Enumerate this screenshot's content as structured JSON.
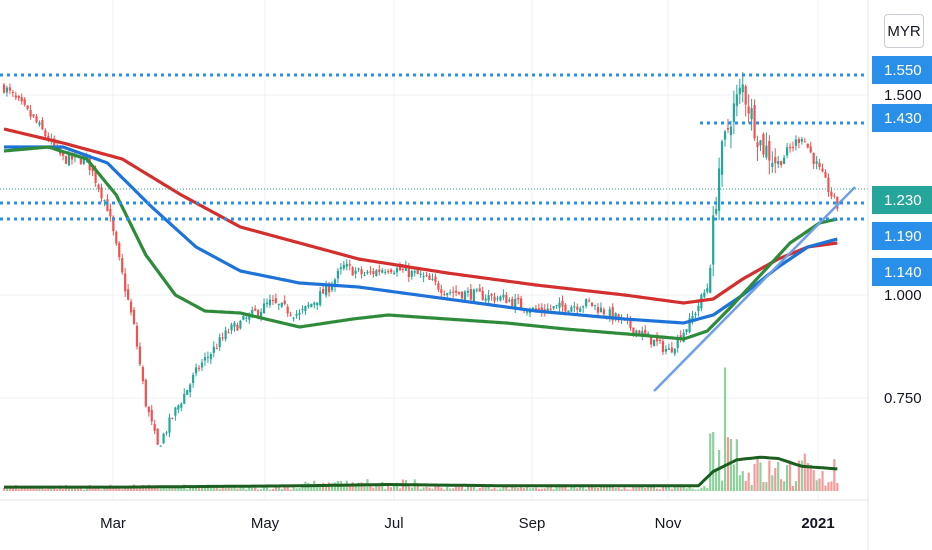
{
  "currency": "MYR",
  "colors": {
    "up": "#26a69a",
    "down": "#ef5350",
    "ma_red": "#d32f2f",
    "ma_blue": "#1e73d8",
    "ma_green": "#2e8b3a",
    "trendline": "#6f9fe6",
    "level": "#2a8fe8",
    "current": "#26a69a",
    "vol_avg": "#1b5e20"
  },
  "chart_data": {
    "type": "candlestick",
    "title": "",
    "x_labels": [
      "Mar",
      "May",
      "Jul",
      "Sep",
      "Nov",
      "2021"
    ],
    "y_ticks": [
      "1.500",
      "1.000",
      "0.750"
    ],
    "ylim": [
      0.55,
      1.62
    ],
    "level_lines": [
      {
        "label": "1.550",
        "value": 1.55
      },
      {
        "label": "1.430",
        "value": 1.43
      },
      {
        "label": "1.190",
        "value": 1.19
      },
      {
        "label": "1.140",
        "value": 1.14
      }
    ],
    "dotted_levels": [
      1.55,
      1.43,
      1.19,
      1.23
    ],
    "current_price": {
      "label": "1.230",
      "value": 1.23
    },
    "price_keypoints": [
      [
        0,
        1.52
      ],
      [
        10,
        1.44
      ],
      [
        20,
        1.34
      ],
      [
        28,
        1.34
      ],
      [
        35,
        1.22
      ],
      [
        40,
        1.05
      ],
      [
        44,
        0.92
      ],
      [
        48,
        0.73
      ],
      [
        52,
        0.62
      ],
      [
        58,
        0.71
      ],
      [
        66,
        0.82
      ],
      [
        76,
        0.91
      ],
      [
        90,
        0.98
      ],
      [
        100,
        0.95
      ],
      [
        110,
        1.02
      ],
      [
        115,
        1.07
      ],
      [
        122,
        1.05
      ],
      [
        130,
        1.07
      ],
      [
        140,
        1.05
      ],
      [
        150,
        1.01
      ],
      [
        170,
        0.99
      ],
      [
        180,
        0.96
      ],
      [
        198,
        0.98
      ],
      [
        210,
        0.93
      ],
      [
        225,
        0.86
      ],
      [
        232,
        0.93
      ],
      [
        238,
        1.02
      ],
      [
        242,
        1.32
      ],
      [
        246,
        1.45
      ],
      [
        250,
        1.52
      ],
      [
        256,
        1.38
      ],
      [
        262,
        1.33
      ],
      [
        270,
        1.4
      ],
      [
        278,
        1.28
      ],
      [
        282,
        1.22
      ]
    ],
    "moving_averages": [
      {
        "color_key": "ma_red",
        "keypoints": [
          [
            0,
            1.415
          ],
          [
            20,
            1.38
          ],
          [
            40,
            1.34
          ],
          [
            60,
            1.25
          ],
          [
            80,
            1.17
          ],
          [
            100,
            1.13
          ],
          [
            120,
            1.09
          ],
          [
            150,
            1.055
          ],
          [
            180,
            1.025
          ],
          [
            210,
            1.0
          ],
          [
            230,
            0.98
          ],
          [
            240,
            0.99
          ],
          [
            250,
            1.04
          ],
          [
            262,
            1.09
          ],
          [
            272,
            1.12
          ],
          [
            282,
            1.13
          ]
        ]
      },
      {
        "color_key": "ma_blue",
        "keypoints": [
          [
            0,
            1.37
          ],
          [
            20,
            1.37
          ],
          [
            35,
            1.33
          ],
          [
            50,
            1.22
          ],
          [
            65,
            1.12
          ],
          [
            80,
            1.06
          ],
          [
            100,
            1.03
          ],
          [
            120,
            1.02
          ],
          [
            150,
            0.99
          ],
          [
            180,
            0.96
          ],
          [
            210,
            0.94
          ],
          [
            230,
            0.93
          ],
          [
            240,
            0.95
          ],
          [
            250,
            1.0
          ],
          [
            262,
            1.07
          ],
          [
            272,
            1.12
          ],
          [
            282,
            1.14
          ]
        ]
      },
      {
        "color_key": "ma_green",
        "keypoints": [
          [
            0,
            1.36
          ],
          [
            15,
            1.37
          ],
          [
            28,
            1.34
          ],
          [
            38,
            1.25
          ],
          [
            48,
            1.1
          ],
          [
            58,
            1.0
          ],
          [
            68,
            0.96
          ],
          [
            80,
            0.955
          ],
          [
            100,
            0.92
          ],
          [
            118,
            0.94
          ],
          [
            130,
            0.95
          ],
          [
            150,
            0.94
          ],
          [
            170,
            0.93
          ],
          [
            190,
            0.915
          ],
          [
            215,
            0.9
          ],
          [
            230,
            0.89
          ],
          [
            238,
            0.91
          ],
          [
            246,
            0.97
          ],
          [
            256,
            1.05
          ],
          [
            266,
            1.13
          ],
          [
            276,
            1.18
          ],
          [
            282,
            1.19
          ]
        ]
      }
    ],
    "trendline": {
      "from": [
        220,
        0.76
      ],
      "to": [
        288,
        1.27
      ]
    },
    "volume_avg_keypoints": [
      [
        0,
        0.03
      ],
      [
        40,
        0.03
      ],
      [
        100,
        0.04
      ],
      [
        130,
        0.05
      ],
      [
        170,
        0.04
      ],
      [
        235,
        0.04
      ],
      [
        240,
        0.15
      ],
      [
        248,
        0.24
      ],
      [
        256,
        0.26
      ],
      [
        262,
        0.25
      ],
      [
        270,
        0.19
      ],
      [
        282,
        0.17
      ]
    ],
    "bars": 283
  }
}
